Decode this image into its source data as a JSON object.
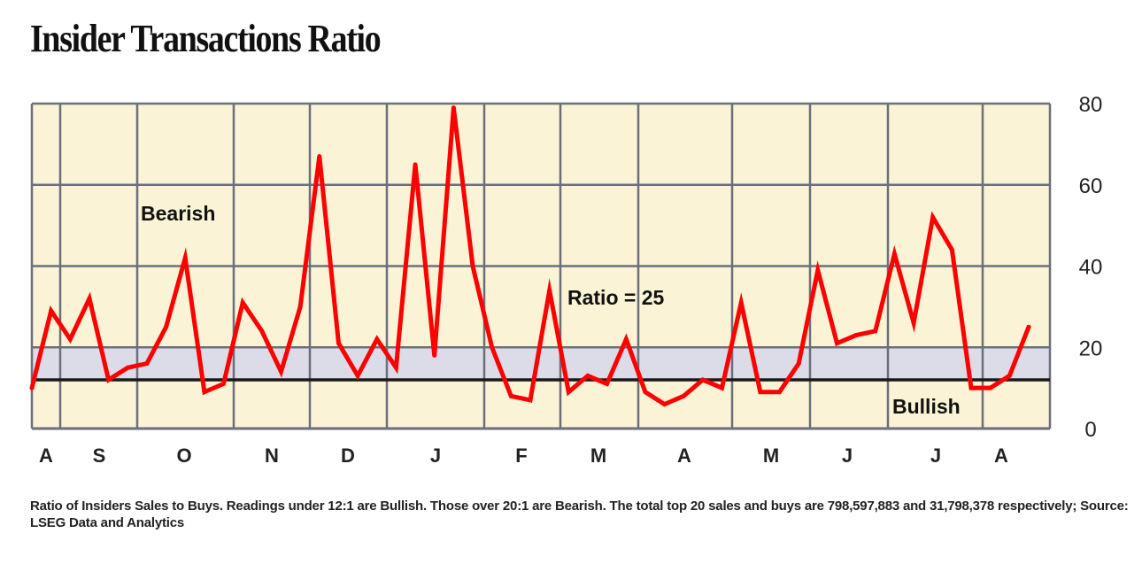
{
  "chart_data": {
    "type": "line",
    "title": "Insider Transactions Ratio",
    "xlabel": "",
    "ylabel": "",
    "ylim": [
      0,
      80
    ],
    "yticks": [
      "0",
      "20",
      "40",
      "60",
      "80"
    ],
    "grid": true,
    "month_labels": [
      "A",
      "S",
      "O",
      "N",
      "D",
      "J",
      "F",
      "M",
      "A",
      "M",
      "J",
      "J",
      "A"
    ],
    "series": [
      {
        "values": [
          10,
          29,
          22,
          32,
          12,
          15,
          16,
          25,
          42,
          9,
          11,
          31,
          24,
          14,
          30,
          67,
          21,
          13,
          22,
          15,
          65,
          18,
          79,
          40,
          20,
          8,
          7,
          34,
          9,
          13,
          11,
          22,
          9,
          6,
          8,
          12,
          10,
          31,
          9,
          9,
          16,
          39,
          21,
          23,
          24,
          43,
          26,
          52,
          44,
          10,
          10,
          13,
          25
        ]
      }
    ],
    "bands": {
      "bullish_below": 12,
      "bearish_above": 20
    },
    "annotations": [
      "Bearish",
      "Ratio = 25",
      "Bullish"
    ],
    "colors": {
      "line": "#ff0000",
      "plot_bg": "#faf3d6",
      "band": "#dcdce8",
      "grid": "#6b6f7a",
      "ratio_line": "#1a1a1a"
    }
  },
  "footnote": "Ratio of Insiders Sales to Buys. Readings under 12:1 are Bullish. Those over 20:1 are Bearish. The total top 20 sales and buys are 798,597,883 and 31,798,378 respectively; Source: LSEG Data and Analytics"
}
